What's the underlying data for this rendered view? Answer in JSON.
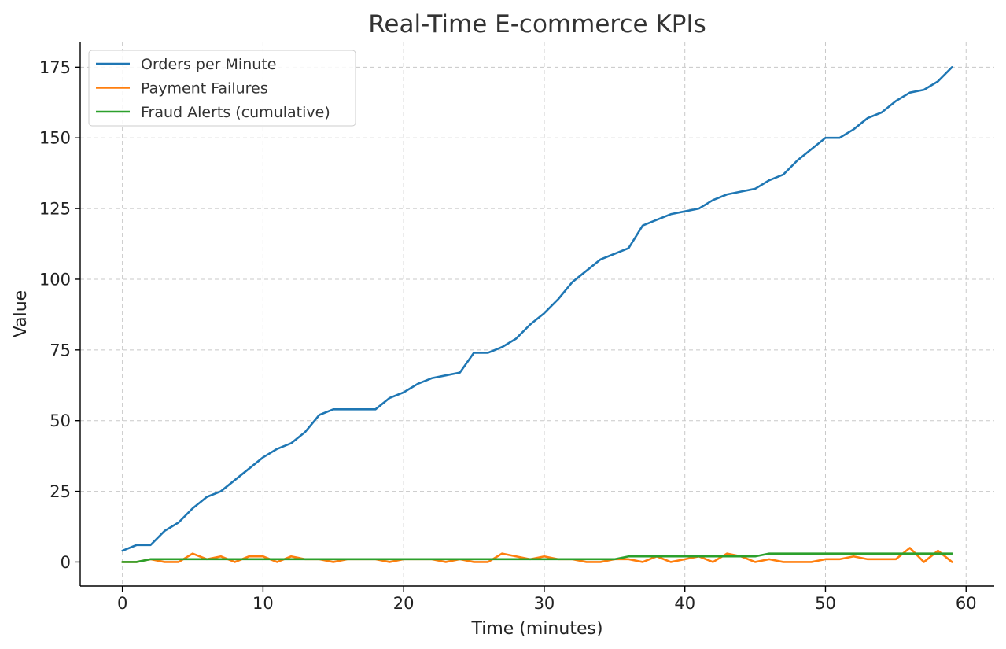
{
  "chart_data": {
    "type": "line",
    "title": "Real-Time E-commerce KPIs",
    "xlabel": "Time (minutes)",
    "ylabel": "Value",
    "xlim": [
      -3,
      62
    ],
    "ylim": [
      -8.5,
      184
    ],
    "xticks": [
      0,
      10,
      20,
      30,
      40,
      50,
      60
    ],
    "yticks": [
      0,
      25,
      50,
      75,
      100,
      125,
      150,
      175
    ],
    "grid": true,
    "legend_position": "top-left",
    "x": [
      0,
      1,
      2,
      3,
      4,
      5,
      6,
      7,
      8,
      9,
      10,
      11,
      12,
      13,
      14,
      15,
      16,
      17,
      18,
      19,
      20,
      21,
      22,
      23,
      24,
      25,
      26,
      27,
      28,
      29,
      30,
      31,
      32,
      33,
      34,
      35,
      36,
      37,
      38,
      39,
      40,
      41,
      42,
      43,
      44,
      45,
      46,
      47,
      48,
      49,
      50,
      51,
      52,
      53,
      54,
      55,
      56,
      57,
      58,
      59
    ],
    "series": [
      {
        "name": "Orders per Minute",
        "color": "#1f77b4",
        "values": [
          4,
          6,
          6,
          11,
          14,
          19,
          23,
          25,
          29,
          33,
          37,
          40,
          42,
          46,
          52,
          54,
          54,
          54,
          54,
          58,
          60,
          63,
          65,
          66,
          67,
          74,
          74,
          76,
          79,
          84,
          88,
          93,
          99,
          103,
          107,
          109,
          111,
          119,
          121,
          123,
          124,
          125,
          128,
          130,
          131,
          132,
          135,
          137,
          142,
          146,
          150,
          150,
          153,
          157,
          159,
          163,
          166,
          167,
          170,
          175
        ]
      },
      {
        "name": "Payment Failures",
        "color": "#ff7f0e",
        "values": [
          0,
          0,
          1,
          0,
          0,
          3,
          1,
          2,
          0,
          2,
          2,
          0,
          2,
          1,
          1,
          0,
          1,
          1,
          1,
          0,
          1,
          1,
          1,
          0,
          1,
          0,
          0,
          3,
          2,
          1,
          2,
          1,
          1,
          0,
          0,
          1,
          1,
          0,
          2,
          0,
          1,
          2,
          0,
          3,
          2,
          0,
          1,
          0,
          0,
          0,
          1,
          1,
          2,
          1,
          1,
          1,
          5,
          0,
          4,
          0
        ]
      },
      {
        "name": "Fraud Alerts (cumulative)",
        "color": "#2ca02c",
        "values": [
          0,
          0,
          1,
          1,
          1,
          1,
          1,
          1,
          1,
          1,
          1,
          1,
          1,
          1,
          1,
          1,
          1,
          1,
          1,
          1,
          1,
          1,
          1,
          1,
          1,
          1,
          1,
          1,
          1,
          1,
          1,
          1,
          1,
          1,
          1,
          1,
          2,
          2,
          2,
          2,
          2,
          2,
          2,
          2,
          2,
          2,
          3,
          3,
          3,
          3,
          3,
          3,
          3,
          3,
          3,
          3,
          3,
          3,
          3,
          3
        ]
      }
    ]
  }
}
